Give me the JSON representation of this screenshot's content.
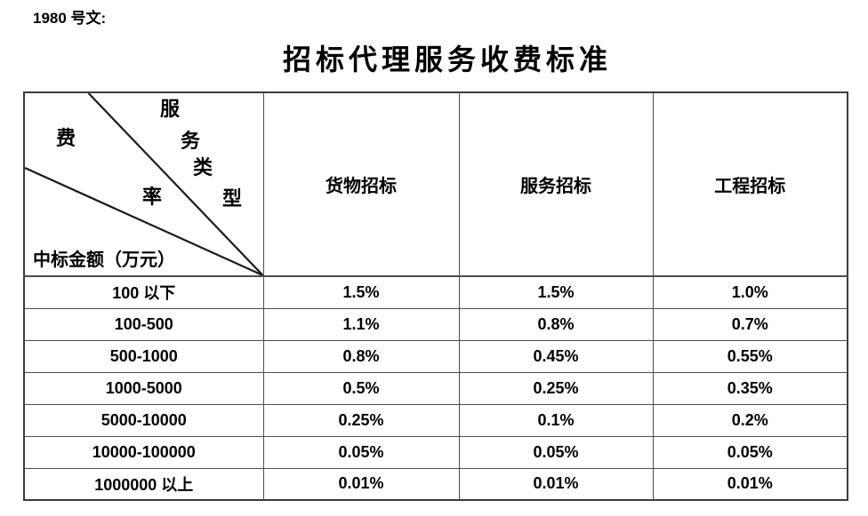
{
  "doc_label": "1980 号文:",
  "title": "招标代理服务收费标准",
  "colors": {
    "background": "#ffffff",
    "text": "#000000",
    "table_border": "#4d4d4d",
    "diagonal_line": "#1a1a1a"
  },
  "table": {
    "corner": {
      "service_type_chars": [
        "服",
        "务",
        "类",
        "型"
      ],
      "fee_rate_chars": [
        "费",
        "率"
      ],
      "service_type_label": "服务类型",
      "fee_rate_label": "费率",
      "amount_label": "中标金额（万元）"
    },
    "columns": [
      "货物招标",
      "服务招标",
      "工程招标"
    ],
    "rows": [
      {
        "range": "100 以下",
        "values": [
          "1.5%",
          "1.5%",
          "1.0%"
        ]
      },
      {
        "range": "100-500",
        "values": [
          "1.1%",
          "0.8%",
          "0.7%"
        ]
      },
      {
        "range": "500-1000",
        "values": [
          "0.8%",
          "0.45%",
          "0.55%"
        ]
      },
      {
        "range": "1000-5000",
        "values": [
          "0.5%",
          "0.25%",
          "0.35%"
        ]
      },
      {
        "range": "5000-10000",
        "values": [
          "0.25%",
          "0.1%",
          "0.2%"
        ]
      },
      {
        "range": "10000-100000",
        "values": [
          "0.05%",
          "0.05%",
          "0.05%"
        ]
      },
      {
        "range": "1000000 以上",
        "values": [
          "0.01%",
          "0.01%",
          "0.01%"
        ]
      }
    ]
  }
}
